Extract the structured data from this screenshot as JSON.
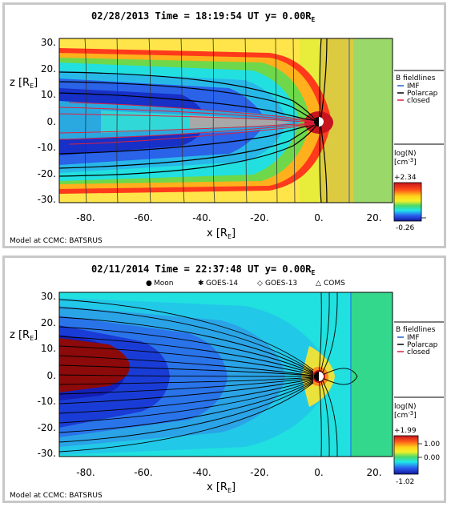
{
  "chart_data": [
    {
      "type": "heatmap",
      "title": "02/28/2013 Time = 18:19:54 UT y= 0.00R",
      "title_sub": "E",
      "xlabel": "x [R",
      "ylabel": "z [R",
      "label_sub": "E",
      "label_close": "]",
      "xlim": [
        -90,
        25
      ],
      "ylim": [
        -32,
        33
      ],
      "x_ticks": [
        -80,
        -60,
        -40,
        -20,
        0,
        20
      ],
      "x_tick_labels": [
        "-80.",
        "-60.",
        "-40.",
        "-20.",
        "0.",
        "20."
      ],
      "y_ticks": [
        30,
        20,
        10,
        0,
        -10,
        -20,
        -30
      ],
      "y_tick_labels": [
        "30.",
        "20.",
        "10.",
        "0.",
        "-10.",
        "-20.",
        "-30."
      ],
      "legend": {
        "heading": "B fieldlines",
        "entries": [
          {
            "label": "IMF",
            "color": "#1f5fd0"
          },
          {
            "label": "Polarcap",
            "color": "#000000"
          },
          {
            "label": "closed",
            "color": "#e0203c"
          }
        ]
      },
      "colorbar": {
        "label": "log(N)",
        "unit": "[cm",
        "unit_exp": "-3",
        "unit_close": "]",
        "max_label": "+2.34",
        "min_label": "-0.26",
        "tick_labels": []
      },
      "footer": "Model at CCMC: BATSRUS"
    },
    {
      "type": "heatmap",
      "title": "02/11/2014 Time = 22:37:48 UT y= 0.00R",
      "title_sub": "E",
      "xlabel": "x [R",
      "ylabel": "z [R",
      "label_sub": "E",
      "label_close": "]",
      "xlim": [
        -90,
        25
      ],
      "ylim": [
        -32,
        33
      ],
      "x_ticks": [
        -80,
        -60,
        -40,
        -20,
        0,
        20
      ],
      "x_tick_labels": [
        "-80.",
        "-60.",
        "-40.",
        "-20.",
        "0.",
        "20."
      ],
      "y_ticks": [
        30,
        20,
        10,
        0,
        -10,
        -20,
        -30
      ],
      "y_tick_labels": [
        "30.",
        "20.",
        "10.",
        "0.",
        "-10.",
        "-20.",
        "-30."
      ],
      "markers": [
        {
          "symbol": "●",
          "label": "Moon"
        },
        {
          "symbol": "✱",
          "label": "GOES-14"
        },
        {
          "symbol": "◇",
          "label": "GOES-13"
        },
        {
          "symbol": "△",
          "label": "COMS"
        }
      ],
      "legend": {
        "heading": "B fieldlines",
        "entries": [
          {
            "label": "IMF",
            "color": "#1f5fd0"
          },
          {
            "label": "Polarcap",
            "color": "#000000"
          },
          {
            "label": "closed",
            "color": "#e0203c"
          }
        ]
      },
      "colorbar": {
        "label": "log(N)",
        "unit": "[cm",
        "unit_exp": "-3",
        "unit_close": "]",
        "max_label": "+1.99",
        "min_label": "-1.02",
        "tick_labels": [
          "1.00",
          "0.00"
        ]
      },
      "footer": "Model at CCMC: BATSRUS"
    }
  ]
}
